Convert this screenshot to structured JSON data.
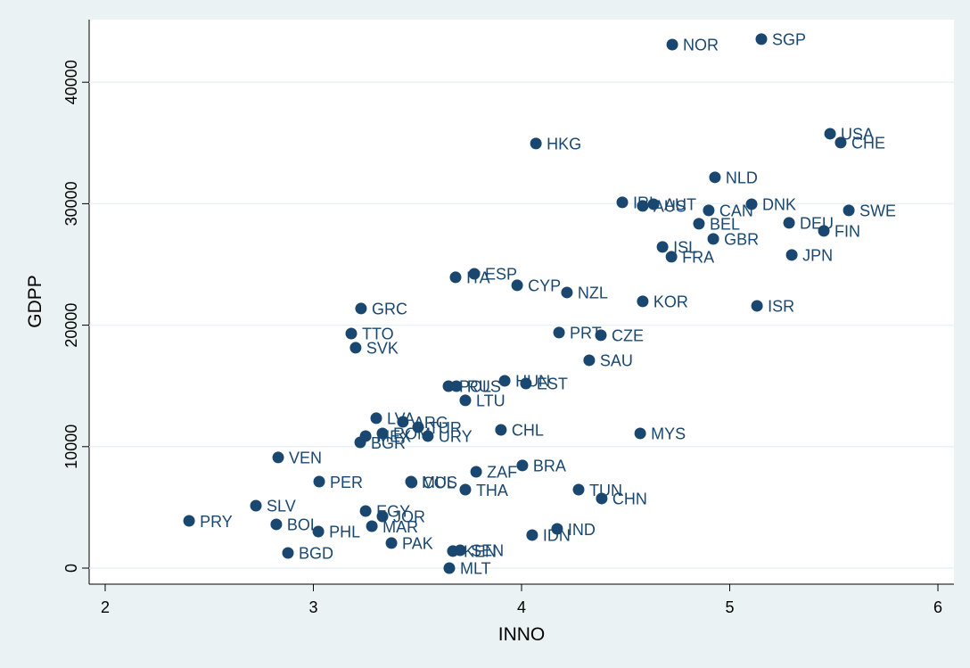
{
  "chart_data": {
    "type": "scatter",
    "x_label": "INNO",
    "y_label": "GDPP",
    "xlim": [
      1.923,
      6.077
    ],
    "ylim": [
      -1322,
      45154
    ],
    "xticks": [
      2,
      3,
      4,
      5,
      6
    ],
    "yticks": [
      0,
      10000,
      20000,
      30000,
      40000
    ],
    "color": "#1a476f",
    "labels": [
      "NOR",
      "SGP",
      "HKG",
      "USA",
      "CHE",
      "NLD",
      "AUT",
      "IRL",
      "AUS",
      "CAN",
      "DNK",
      "SWE",
      "DEU",
      "FIN",
      "BEL",
      "GBR",
      "ISL",
      "FRA",
      "JPN",
      "ESP",
      "ITA",
      "CYP",
      "NZL",
      "KOR",
      "ISR",
      "GRC",
      "TTO",
      "SVK",
      "PRT",
      "CZE",
      "SAU",
      "HUN",
      "EST",
      "POL",
      "RUS",
      "LTU",
      "LVA",
      "ARG",
      "MEX",
      "TUR",
      "ROM",
      "BGR",
      "URY",
      "CHL",
      "MYS",
      "VEN",
      "MUS",
      "COL",
      "ZAF",
      "BRA",
      "PER",
      "TUN",
      "CHN",
      "THA",
      "EGY",
      "SLV",
      "JOR",
      "PRY",
      "BOL",
      "MAR",
      "PHL",
      "IND",
      "IDN",
      "PAK",
      "KEN",
      "SEN",
      "BGD",
      "MLT"
    ],
    "x": [
      4.724,
      5.152,
      4.069,
      5.482,
      5.533,
      4.929,
      4.634,
      4.484,
      4.582,
      4.899,
      5.105,
      5.572,
      5.285,
      5.452,
      4.852,
      4.921,
      4.677,
      4.72,
      5.298,
      3.773,
      3.683,
      3.979,
      4.218,
      4.582,
      5.131,
      3.229,
      3.182,
      3.203,
      4.18,
      4.381,
      4.325,
      3.919,
      4.021,
      3.649,
      3.687,
      3.73,
      3.302,
      3.43,
      3.251,
      3.503,
      3.332,
      3.225,
      3.55,
      3.901,
      4.57,
      2.831,
      3.469,
      3.472,
      3.782,
      4.004,
      3.028,
      4.274,
      4.385,
      3.73,
      3.251,
      2.724,
      3.332,
      2.403,
      2.822,
      3.281,
      3.024,
      4.171,
      4.051,
      3.375,
      3.67,
      3.705,
      2.878,
      3.653
    ],
    "values": [
      43100,
      43550,
      34960,
      35760,
      35030,
      32170,
      29960,
      30110,
      29820,
      29450,
      29960,
      29450,
      28420,
      27760,
      28350,
      27100,
      26440,
      25630,
      25780,
      24230,
      23940,
      23280,
      22690,
      21960,
      21590,
      21370,
      19310,
      18140,
      19390,
      19170,
      17110,
      15420,
      15200,
      14980,
      14980,
      13810,
      12340,
      12040,
      10870,
      11600,
      11090,
      10350,
      10870,
      11380,
      11090,
      9110,
      7120,
      7050,
      7930,
      8450,
      7120,
      6460,
      5730,
      6460,
      4700,
      5140,
      4260,
      3890,
      3600,
      3450,
      3010,
      3230,
      2720,
      2060,
      1400,
      1470,
      1250,
      0
    ]
  }
}
